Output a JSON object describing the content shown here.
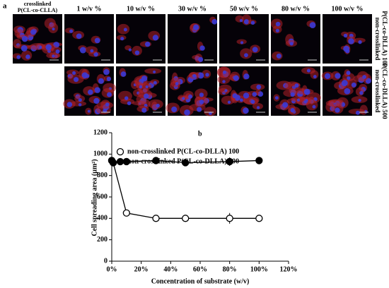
{
  "panel_a": {
    "label": "a",
    "first_column": [
      "crosslinked",
      "P(CL-co-CLLA)"
    ],
    "columns": [
      "1 w/v %",
      "10 w/v %",
      "30 w/v %",
      "50 w/v %",
      "80 w/v %",
      "100 w/v %"
    ],
    "rows": [
      [
        "non-crosslinked",
        "P(CL-co-DLLA) 100"
      ],
      [
        "non-crosslinked",
        "P(CL-co-DLLA) 500"
      ]
    ]
  },
  "chart_data": {
    "type": "line",
    "panel_label": "b",
    "x_label": "Concentration of substrate (w/v)",
    "y_label": "Cell spreading area (µm²)",
    "x": [
      0,
      1,
      10,
      30,
      50,
      80,
      100
    ],
    "series": [
      {
        "name": "non-crosslinked P(CL-co-DLLA) 100",
        "color": "#000000",
        "marker": "open",
        "values": [
          940,
          920,
          450,
          400,
          400,
          400,
          400
        ],
        "errors": [
          20,
          20,
          20,
          15,
          15,
          50,
          25
        ]
      },
      {
        "name": "non-crosslinked P(CL-co-DLLA) 500",
        "color": "#000000",
        "marker": "filled",
        "values": [
          940,
          920,
          930,
          940,
          920,
          930,
          940
        ],
        "errors": [
          20,
          20,
          15,
          15,
          15,
          40,
          15
        ]
      }
    ],
    "xlim": [
      0,
      120
    ],
    "ylim": [
      0,
      1200
    ],
    "xticks": [
      {
        "value": 0,
        "label": "0%"
      },
      {
        "value": 20,
        "label": "20%"
      },
      {
        "value": 40,
        "label": "40%"
      },
      {
        "value": 60,
        "label": "60%"
      },
      {
        "value": 80,
        "label": "80%"
      },
      {
        "value": 100,
        "label": "100%"
      },
      {
        "value": 120,
        "label": "120%"
      }
    ],
    "yticks": [
      0,
      200,
      400,
      600,
      800,
      1000,
      1200
    ]
  }
}
